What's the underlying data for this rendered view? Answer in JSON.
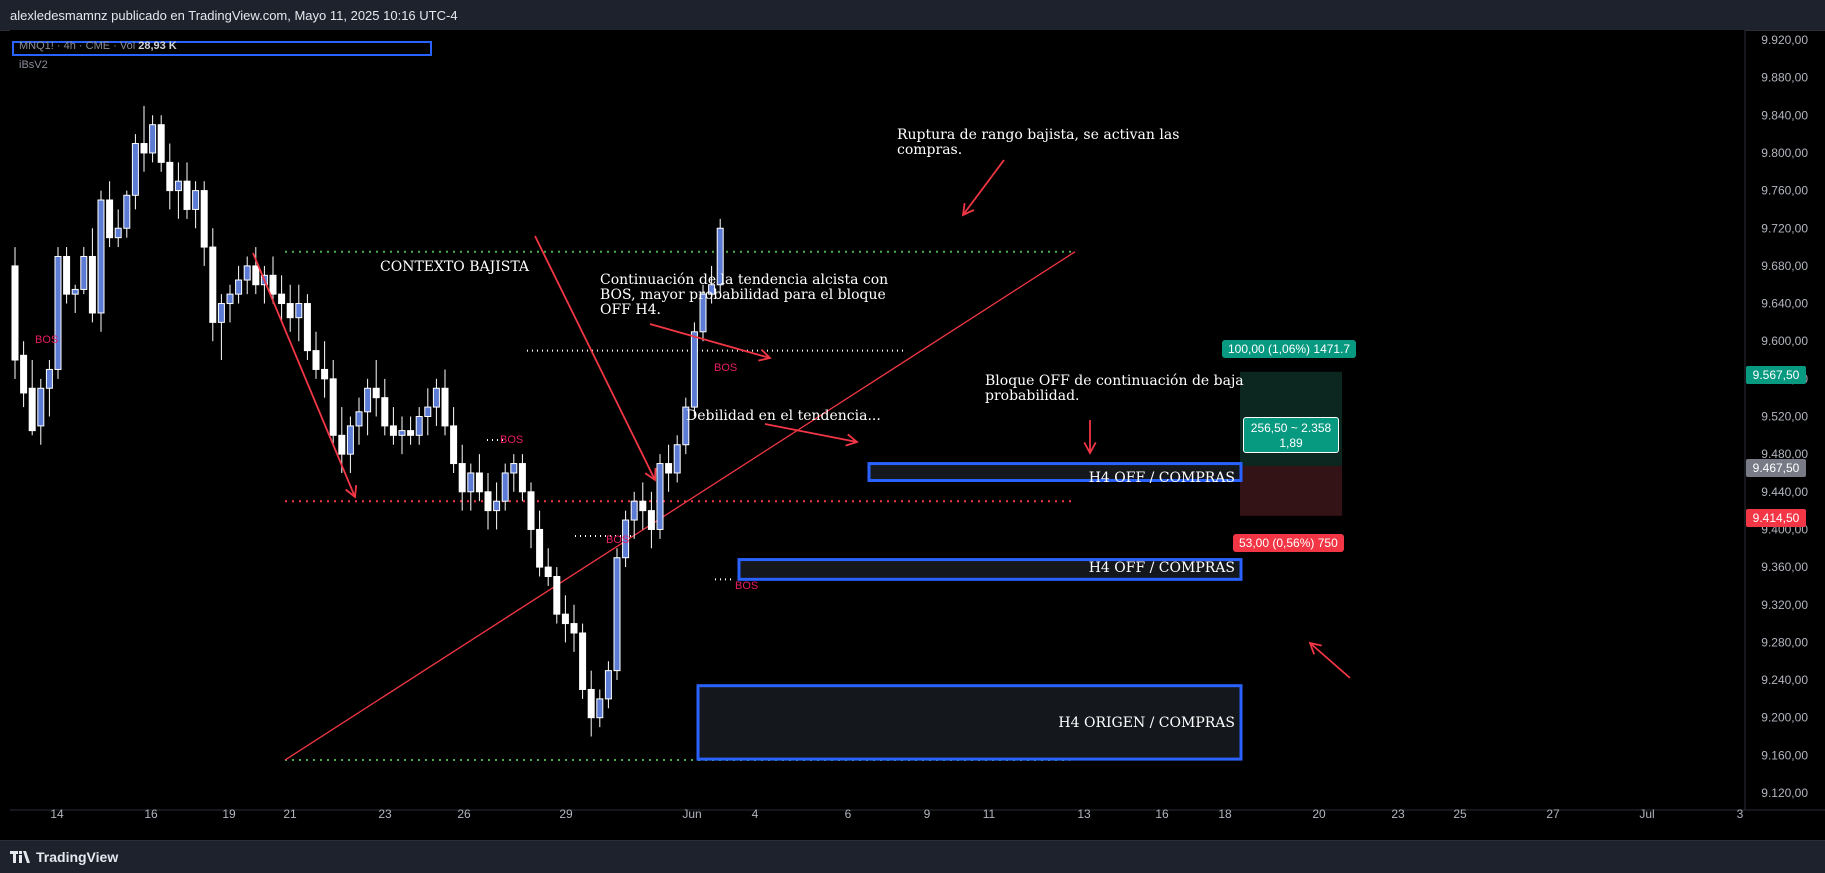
{
  "header": {
    "publisher": "alexledesmamnz publicado en TradingView.com, Mayo 11, 2025 10:16 UTC-4"
  },
  "legend": {
    "symbol": "MNQ1! · 4h · CME · Vol",
    "volume": "28,93 K",
    "indicator": "iBsV2"
  },
  "footer": {
    "brand": "TradingView"
  },
  "colors": {
    "bullish": "#ffffff",
    "bearish": "#ffffff",
    "bullish_body": "#5b7bd5",
    "zone_border": "#2962ff",
    "arrow": "#f23645",
    "trendline": "#f23645",
    "green_dotted": "#4caf50"
  },
  "annotations": {
    "context": "CONTEXTO BAJISTA",
    "continuation": "Continuación de la tendencia alcista con\nBOS, mayor probabilidad para el bloque\nOFF H4.",
    "rupture": "Ruptura de rango bajista, se activan las\ncompras.",
    "weakness": "Debilidad en el tendencia...",
    "block_off": "Bloque OFF de continuación de baja\nprobabilidad.",
    "bos": "BOS"
  },
  "zones": {
    "off1": "H4 OFF / COMPRAS",
    "off2": "H4 OFF / COMPRAS",
    "origin": "H4 ORIGEN / COMPRAS"
  },
  "position": {
    "target_label": "100,00 (1,06%) 1471.7",
    "stop_label": "53,00 (0,56%) 750",
    "center_line1": "256,50 ~ 2.358",
    "center_line2": "1,89"
  },
  "price_tags": {
    "target": "9.567,50",
    "entry": "9.467,50",
    "stop": "9.414,50"
  },
  "chart_data": {
    "type": "candlestick",
    "title": "",
    "xlabel": "",
    "ylabel": "",
    "ylim": [
      9100,
      9940
    ],
    "y_ticks": [
      "9.120,00",
      "9.160,00",
      "9.200,00",
      "9.240,00",
      "9.280,00",
      "9.320,00",
      "9.360,00",
      "9.400,00",
      "9.440,00",
      "9.480,00",
      "9.520,00",
      "9.560,00",
      "9.600,00",
      "9.640,00",
      "9.680,00",
      "9.720,00",
      "9.760,00",
      "9.800,00",
      "9.840,00",
      "9.880,00",
      "9.920,00"
    ],
    "x_ticks": [
      "14",
      "16",
      "19",
      "21",
      "23",
      "26",
      "29",
      "Jun",
      "4",
      "6",
      "9",
      "11",
      "13",
      "16",
      "18",
      "20",
      "23",
      "25",
      "27",
      "Jul",
      "3"
    ],
    "levels": {
      "green_upper": 9695,
      "green_lower": 9155,
      "red_dotted": 9430,
      "target": 9567.5,
      "entry": 9467.5,
      "stop": 9414.5
    },
    "zones": [
      {
        "name": "H4 OFF / COMPRAS",
        "low": 9452,
        "high": 9470
      },
      {
        "name": "H4 OFF / COMPRAS",
        "low": 9347,
        "high": 9368
      },
      {
        "name": "H4 ORIGEN / COMPRAS",
        "low": 9156,
        "high": 9234
      }
    ],
    "candles": [
      [
        9680,
        9700,
        9560,
        9580
      ],
      [
        9585,
        9600,
        9530,
        9545
      ],
      [
        9550,
        9580,
        9500,
        9505
      ],
      [
        9510,
        9560,
        9490,
        9550
      ],
      [
        9550,
        9580,
        9520,
        9570
      ],
      [
        9570,
        9700,
        9560,
        9690
      ],
      [
        9690,
        9700,
        9640,
        9650
      ],
      [
        9650,
        9660,
        9630,
        9655
      ],
      [
        9655,
        9700,
        9650,
        9690
      ],
      [
        9690,
        9720,
        9620,
        9630
      ],
      [
        9630,
        9760,
        9610,
        9750
      ],
      [
        9750,
        9770,
        9700,
        9710
      ],
      [
        9710,
        9740,
        9700,
        9720
      ],
      [
        9720,
        9760,
        9710,
        9755
      ],
      [
        9755,
        9820,
        9740,
        9810
      ],
      [
        9810,
        9850,
        9780,
        9800
      ],
      [
        9800,
        9840,
        9790,
        9830
      ],
      [
        9830,
        9840,
        9780,
        9790
      ],
      [
        9790,
        9810,
        9740,
        9760
      ],
      [
        9760,
        9790,
        9730,
        9770
      ],
      [
        9770,
        9790,
        9730,
        9740
      ],
      [
        9740,
        9770,
        9720,
        9760
      ],
      [
        9760,
        9770,
        9680,
        9700
      ],
      [
        9700,
        9720,
        9600,
        9620
      ],
      [
        9620,
        9650,
        9580,
        9640
      ],
      [
        9640,
        9660,
        9620,
        9650
      ],
      [
        9650,
        9680,
        9640,
        9665
      ],
      [
        9665,
        9690,
        9650,
        9680
      ],
      [
        9680,
        9700,
        9650,
        9660
      ],
      [
        9660,
        9680,
        9640,
        9670
      ],
      [
        9670,
        9690,
        9640,
        9650
      ],
      [
        9650,
        9670,
        9620,
        9640
      ],
      [
        9640,
        9660,
        9610,
        9625
      ],
      [
        9625,
        9660,
        9600,
        9640
      ],
      [
        9640,
        9650,
        9580,
        9590
      ],
      [
        9590,
        9610,
        9560,
        9570
      ],
      [
        9570,
        9600,
        9540,
        9560
      ],
      [
        9560,
        9580,
        9490,
        9500
      ],
      [
        9500,
        9530,
        9460,
        9480
      ],
      [
        9480,
        9520,
        9460,
        9510
      ],
      [
        9510,
        9540,
        9490,
        9525
      ],
      [
        9525,
        9560,
        9500,
        9550
      ],
      [
        9550,
        9580,
        9520,
        9540
      ],
      [
        9540,
        9560,
        9500,
        9510
      ],
      [
        9510,
        9530,
        9490,
        9500
      ],
      [
        9500,
        9520,
        9480,
        9505
      ],
      [
        9505,
        9520,
        9490,
        9500
      ],
      [
        9500,
        9530,
        9490,
        9520
      ],
      [
        9520,
        9550,
        9500,
        9530
      ],
      [
        9530,
        9560,
        9510,
        9550
      ],
      [
        9550,
        9570,
        9500,
        9510
      ],
      [
        9510,
        9530,
        9460,
        9470
      ],
      [
        9470,
        9490,
        9420,
        9440
      ],
      [
        9440,
        9470,
        9420,
        9460
      ],
      [
        9460,
        9480,
        9430,
        9440
      ],
      [
        9440,
        9460,
        9400,
        9420
      ],
      [
        9420,
        9450,
        9400,
        9430
      ],
      [
        9430,
        9470,
        9420,
        9460
      ],
      [
        9460,
        9480,
        9440,
        9470
      ],
      [
        9470,
        9480,
        9430,
        9440
      ],
      [
        9440,
        9450,
        9380,
        9400
      ],
      [
        9400,
        9420,
        9350,
        9360
      ],
      [
        9360,
        9380,
        9340,
        9350
      ],
      [
        9350,
        9360,
        9300,
        9310
      ],
      [
        9310,
        9330,
        9280,
        9300
      ],
      [
        9300,
        9320,
        9270,
        9290
      ],
      [
        9290,
        9300,
        9220,
        9230
      ],
      [
        9230,
        9250,
        9180,
        9200
      ],
      [
        9200,
        9230,
        9190,
        9220
      ],
      [
        9220,
        9260,
        9210,
        9250
      ],
      [
        9250,
        9380,
        9240,
        9370
      ],
      [
        9370,
        9420,
        9360,
        9410
      ],
      [
        9410,
        9440,
        9390,
        9430
      ],
      [
        9430,
        9450,
        9400,
        9420
      ],
      [
        9420,
        9440,
        9380,
        9400
      ],
      [
        9400,
        9480,
        9390,
        9470
      ],
      [
        9470,
        9490,
        9440,
        9460
      ],
      [
        9460,
        9500,
        9450,
        9490
      ],
      [
        9490,
        9540,
        9480,
        9530
      ],
      [
        9530,
        9620,
        9520,
        9610
      ],
      [
        9610,
        9660,
        9600,
        9650
      ],
      [
        9650,
        9680,
        9640,
        9660
      ],
      [
        9660,
        9730,
        9650,
        9720
      ]
    ]
  }
}
